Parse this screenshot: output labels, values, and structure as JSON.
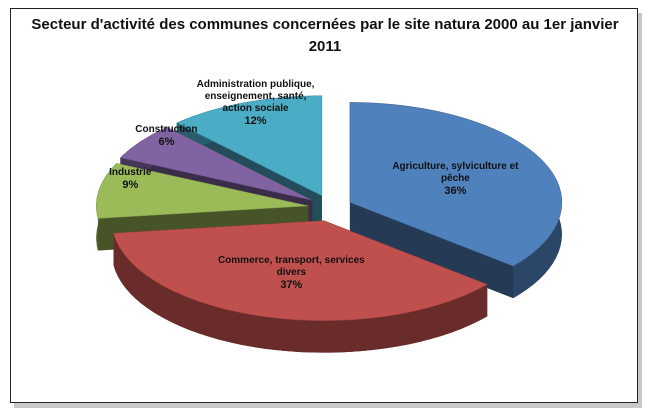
{
  "chart_data": {
    "type": "pie",
    "title": "Secteur d'activité des communes concernées par le site natura 2000 au 1er janvier 2011",
    "categories": [
      "Agriculture, sylviculture et pêche",
      "Commerce, transport, services divers",
      "Industrie",
      "Construction",
      "Administration publique, enseignement, santé, action sociale"
    ],
    "values": [
      36,
      37,
      9,
      6,
      12
    ],
    "value_labels": [
      "36%",
      "37%",
      "9%",
      "6%",
      "12%"
    ],
    "colors": [
      "#4f81bd",
      "#c0504d",
      "#9bbb59",
      "#8064a2",
      "#4bacc6"
    ]
  }
}
